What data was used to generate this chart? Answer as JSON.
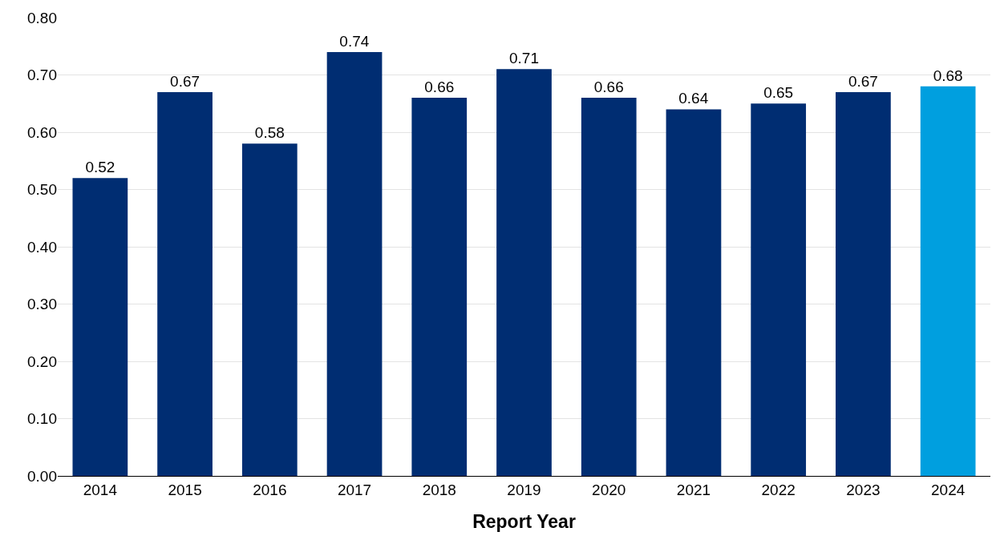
{
  "chart_data": {
    "type": "bar",
    "xlabel": "Report Year",
    "categories": [
      "2014",
      "2015",
      "2016",
      "2017",
      "2018",
      "2019",
      "2020",
      "2021",
      "2022",
      "2023",
      "2024"
    ],
    "values": [
      0.52,
      0.67,
      0.58,
      0.74,
      0.66,
      0.71,
      0.66,
      0.64,
      0.65,
      0.67,
      0.68
    ],
    "colors": [
      "#002d72",
      "#002d72",
      "#002d72",
      "#002d72",
      "#002d72",
      "#002d72",
      "#002d72",
      "#002d72",
      "#002d72",
      "#002d72",
      "#009fdf"
    ],
    "ylim": [
      0,
      0.8
    ],
    "yticks": [
      {
        "value": 0,
        "label": "0.00"
      },
      {
        "value": 0.1,
        "label": "0.10"
      },
      {
        "value": 0.2,
        "label": "0.20"
      },
      {
        "value": 0.3,
        "label": "0.30"
      },
      {
        "value": 0.4,
        "label": "0.40"
      },
      {
        "value": 0.5,
        "label": "0.50"
      },
      {
        "value": 0.6,
        "label": "0.60"
      },
      {
        "value": 0.7,
        "label": "0.70"
      },
      {
        "value": 0.8,
        "label": "0.80"
      }
    ],
    "grid": "y",
    "data_labels": true
  }
}
